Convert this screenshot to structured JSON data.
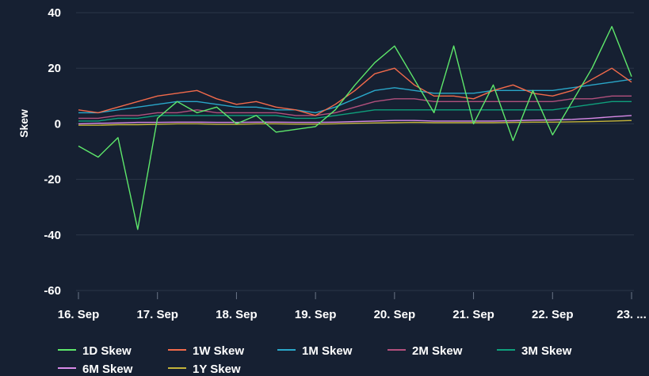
{
  "chart_data": {
    "type": "line",
    "title": "",
    "xlabel": "",
    "ylabel": "Skew",
    "ylim": [
      -60,
      45
    ],
    "y_ticks": [
      40,
      20,
      0,
      -20,
      -40,
      -60
    ],
    "x_ticks": [
      {
        "value": 0,
        "label": "16. Sep"
      },
      {
        "value": 1,
        "label": "17. Sep"
      },
      {
        "value": 2,
        "label": "18. Sep"
      },
      {
        "value": 3,
        "label": "19. Sep"
      },
      {
        "value": 4,
        "label": "20. Sep"
      },
      {
        "value": 5,
        "label": "21. Sep"
      },
      {
        "value": 6,
        "label": "22. Sep"
      },
      {
        "value": 7,
        "label": "23. ..."
      }
    ],
    "xlim": [
      0,
      7.0
    ],
    "grid": true,
    "legend_position": "bottom",
    "x": [
      0.0,
      0.25,
      0.5,
      0.75,
      1.0,
      1.25,
      1.5,
      1.75,
      2.0,
      2.25,
      2.5,
      2.75,
      3.0,
      3.25,
      3.5,
      3.75,
      4.0,
      4.25,
      4.5,
      4.75,
      5.0,
      5.25,
      5.5,
      5.75,
      6.0,
      6.25,
      6.5,
      6.75,
      7.0
    ],
    "series": [
      {
        "name": "1D Skew",
        "color": "#5ee86b",
        "values": [
          -8,
          -12,
          -5,
          -38,
          2,
          8,
          4,
          6,
          0,
          3,
          -3,
          -2,
          -1,
          5,
          14,
          22,
          28,
          16,
          4,
          28,
          0,
          14,
          -6,
          12,
          -4,
          8,
          20,
          35,
          17
        ]
      },
      {
        "name": "1W Skew",
        "color": "#f26a4b",
        "values": [
          5,
          4,
          6,
          8,
          10,
          11,
          12,
          9,
          7,
          8,
          6,
          5,
          3,
          7,
          12,
          18,
          20,
          14,
          10,
          10,
          9,
          12,
          14,
          11,
          10,
          12,
          16,
          20,
          15
        ]
      },
      {
        "name": "1M Skew",
        "color": "#2aa7c9",
        "values": [
          4,
          4,
          5,
          6,
          7,
          8,
          8,
          7,
          6,
          6,
          5,
          5,
          4,
          6,
          9,
          12,
          13,
          12,
          11,
          11,
          11,
          12,
          12,
          12,
          12,
          13,
          14,
          15,
          16
        ]
      },
      {
        "name": "2M Skew",
        "color": "#b2507d",
        "values": [
          2,
          2,
          3,
          3,
          4,
          4,
          5,
          4,
          4,
          4,
          4,
          3,
          3,
          4,
          6,
          8,
          9,
          9,
          8,
          8,
          8,
          8,
          8,
          8,
          8,
          9,
          9,
          10,
          10
        ]
      },
      {
        "name": "3M Skew",
        "color": "#0fa07c",
        "values": [
          1,
          1,
          2,
          2,
          3,
          3,
          3,
          3,
          3,
          3,
          3,
          2,
          2,
          3,
          4,
          5,
          5,
          5,
          5,
          5,
          5,
          5,
          5,
          5,
          5,
          6,
          7,
          8,
          8
        ]
      },
      {
        "name": "6M Skew",
        "color": "#d98ae8",
        "values": [
          0,
          0.2,
          0.3,
          0.5,
          0.5,
          0.6,
          0.6,
          0.5,
          0.5,
          0.6,
          0.6,
          0.5,
          0.5,
          0.6,
          0.8,
          1.0,
          1.2,
          1.2,
          1.0,
          1.0,
          1.0,
          1.0,
          1.1,
          1.3,
          1.4,
          1.6,
          2.0,
          2.5,
          3.0
        ]
      },
      {
        "name": "1Y Skew",
        "color": "#c4b43a",
        "values": [
          -0.5,
          -0.5,
          -0.3,
          -0.3,
          -0.2,
          0,
          0,
          -0.2,
          -0.2,
          0,
          0,
          -0.1,
          -0.1,
          0,
          0.2,
          0.3,
          0.4,
          0.5,
          0.4,
          0.4,
          0.4,
          0.4,
          0.5,
          0.6,
          0.6,
          0.7,
          0.8,
          1.0,
          1.2
        ]
      }
    ]
  }
}
